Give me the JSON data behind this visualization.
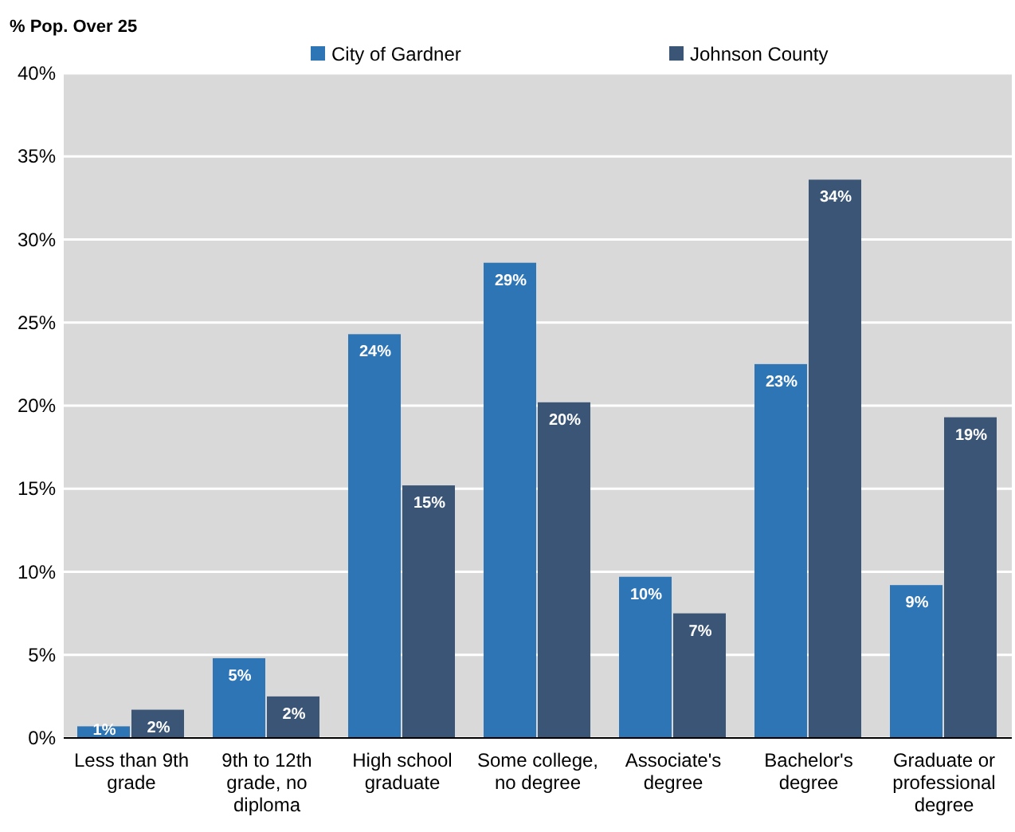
{
  "chart_data": {
    "type": "bar",
    "ylabel": "% Pop. Over 25",
    "categories": [
      "Less than 9th grade",
      "9th to 12th grade, no diploma",
      "High school graduate",
      "Some college, no degree",
      "Associate's degree",
      "Bachelor's degree",
      "Graduate or professional degree"
    ],
    "series": [
      {
        "name": "City of Gardner",
        "color": "#2e75b6",
        "values": [
          0.7,
          4.8,
          24.3,
          28.6,
          9.7,
          22.5,
          9.2
        ],
        "value_labels": [
          "1%",
          "5%",
          "24%",
          "29%",
          "10%",
          "23%",
          "9%"
        ]
      },
      {
        "name": "Johnson County",
        "color": "#3b5577",
        "values": [
          1.7,
          2.5,
          15.2,
          20.2,
          7.5,
          33.6,
          19.3
        ],
        "value_labels": [
          "2%",
          "2%",
          "15%",
          "20%",
          "7%",
          "34%",
          "19%"
        ]
      }
    ],
    "ylim": [
      0,
      40
    ],
    "yticks": [
      {
        "value": 0,
        "label": "0%"
      },
      {
        "value": 5,
        "label": "5%"
      },
      {
        "value": 10,
        "label": "10%"
      },
      {
        "value": 15,
        "label": "15%"
      },
      {
        "value": 20,
        "label": "20%"
      },
      {
        "value": 25,
        "label": "25%"
      },
      {
        "value": 30,
        "label": "30%"
      },
      {
        "value": 35,
        "label": "35%"
      },
      {
        "value": 40,
        "label": "40%"
      }
    ],
    "grid": "y",
    "legend": "top"
  }
}
